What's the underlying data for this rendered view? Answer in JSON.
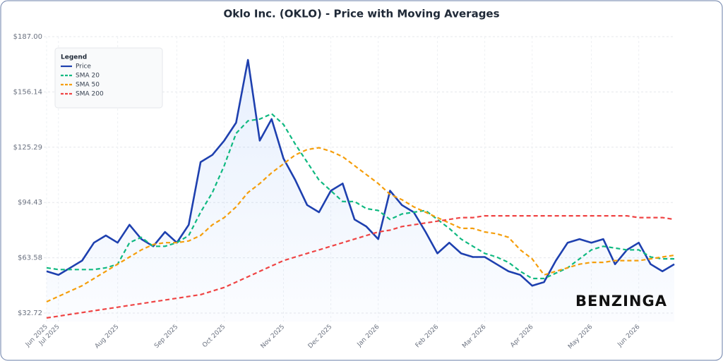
{
  "chart_data": {
    "type": "line",
    "title": "Oklo Inc. (OKLO) - Price with Moving Averages",
    "legend_title": "Legend",
    "watermark": "BENZINGA",
    "legend_position": "upper left",
    "grid": true,
    "categories": [
      "Jun 2025",
      "Jul 2025",
      null,
      null,
      null,
      null,
      "Aug 2025",
      null,
      null,
      null,
      null,
      "Sep 2025",
      null,
      null,
      null,
      "Oct 2025",
      null,
      null,
      null,
      null,
      "Nov 2025",
      null,
      null,
      null,
      "Dec 2025",
      null,
      null,
      null,
      "Jan 2026",
      null,
      null,
      null,
      null,
      "Feb 2026",
      null,
      null,
      null,
      "Mar 2026",
      null,
      null,
      null,
      "Apr 2026",
      null,
      null,
      null,
      null,
      "May 2026",
      null,
      null,
      null,
      "Jun 2026",
      null,
      null,
      null
    ],
    "ylim": [
      28,
      187
    ],
    "yticks": [
      {
        "value": 32.72,
        "label": "$32.72"
      },
      {
        "value": 63.58,
        "label": "$63.58"
      },
      {
        "value": 94.43,
        "label": "$94.43"
      },
      {
        "value": 125.29,
        "label": "$125.29"
      },
      {
        "value": 156.14,
        "label": "$156.14"
      },
      {
        "value": 187.0,
        "label": "$187.00"
      }
    ],
    "series": [
      {
        "name": "Price",
        "color": "#1e40af",
        "dash": "none",
        "fill": true,
        "values": [
          56,
          54,
          58,
          62,
          72,
          76,
          72,
          82,
          74,
          70,
          78,
          72,
          82,
          117,
          121,
          129,
          139,
          174,
          129,
          141,
          119,
          107,
          93,
          89,
          101,
          105,
          85,
          81,
          74,
          101,
          93,
          89,
          78,
          66,
          72,
          66,
          64,
          64,
          60,
          56,
          54,
          48,
          50,
          62,
          72,
          74,
          72,
          74,
          60,
          68,
          72,
          60,
          56,
          60
        ]
      },
      {
        "name": "SMA 20",
        "color": "#10b981",
        "dash": "6,4",
        "values": [
          58,
          57,
          57,
          57,
          57,
          58,
          60,
          72,
          75,
          70,
          70,
          72,
          76,
          89,
          100,
          115,
          133,
          140,
          141,
          144,
          138,
          127,
          117,
          107,
          101,
          95,
          95,
          91,
          90,
          85,
          88,
          89,
          90,
          85,
          80,
          74,
          70,
          66,
          64,
          61,
          56,
          52,
          52,
          55,
          58,
          63,
          68,
          70,
          69,
          68,
          68,
          64,
          63,
          63
        ]
      },
      {
        "name": "SMA 50",
        "color": "#f59e0b",
        "dash": "6,4",
        "values": [
          39,
          42,
          45,
          48,
          52,
          56,
          60,
          64,
          68,
          71,
          72,
          72,
          73,
          76,
          82,
          86,
          92,
          100,
          105,
          111,
          116,
          121,
          124,
          125,
          123,
          120,
          115,
          110,
          105,
          99,
          96,
          92,
          89,
          86,
          83,
          80,
          80,
          78,
          77,
          75,
          68,
          63,
          54,
          56,
          58,
          60,
          61,
          61,
          62,
          62,
          62,
          63,
          64,
          65
        ]
      },
      {
        "name": "SMA 200",
        "color": "#ef4444",
        "dash": "6,4",
        "values": [
          30,
          31,
          32,
          33,
          34,
          35,
          36,
          37,
          38,
          39,
          40,
          41,
          42,
          43,
          45,
          47,
          50,
          53,
          56,
          59,
          62,
          64,
          66,
          68,
          70,
          72,
          74,
          76,
          78,
          79,
          81,
          82,
          83,
          84,
          85,
          86,
          86,
          87,
          87,
          87,
          87,
          87,
          87,
          87,
          87,
          87,
          87,
          87,
          87,
          87,
          86,
          86,
          86,
          85
        ]
      }
    ]
  }
}
